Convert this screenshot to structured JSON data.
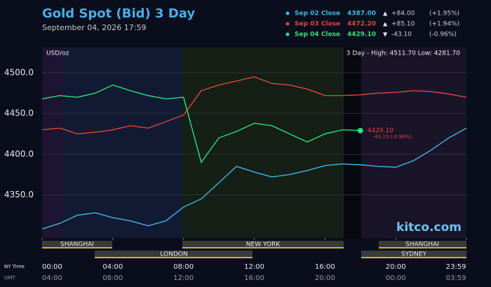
{
  "chart_data": {
    "type": "line",
    "title": "Gold Spot (Bid) 3 Day",
    "subtitle": "September 04, 2026 17:59",
    "unit_label": "USD/oz",
    "range_label": "3 Day - High: 4511.70  Low: 4281.70",
    "brand": "kitco.com",
    "x": [
      0,
      1,
      2,
      3,
      4,
      5,
      6,
      7,
      8,
      9,
      10,
      11,
      12,
      13,
      14,
      15,
      16,
      17,
      18,
      19,
      20,
      21,
      22,
      23,
      24
    ],
    "xlim": [
      0,
      24
    ],
    "xticks": [
      {
        "value": 0,
        "label": "00:00"
      },
      {
        "value": 4,
        "label": "04:00"
      },
      {
        "value": 8,
        "label": "08:00"
      },
      {
        "value": 12,
        "label": "12:00"
      },
      {
        "value": 16,
        "label": "16:00"
      },
      {
        "value": 20,
        "label": "20:00"
      },
      {
        "value": 23.98,
        "label": "23:59"
      }
    ],
    "x2ticks": [
      {
        "value": 0,
        "label": "04:00"
      },
      {
        "value": 4,
        "label": "08:00"
      },
      {
        "value": 8,
        "label": "12:00"
      },
      {
        "value": 12,
        "label": "16:00"
      },
      {
        "value": 16,
        "label": "20:00"
      },
      {
        "value": 20,
        "label": "00:00"
      },
      {
        "value": 23.98,
        "label": "03:59"
      }
    ],
    "xaxis_label": "NY Time",
    "x2axis_label": "GMT",
    "ylim": [
      4297,
      4531
    ],
    "yticks": [
      {
        "value": 4350,
        "label": "4350.0"
      },
      {
        "value": 4400,
        "label": "4400.0"
      },
      {
        "value": 4450,
        "label": "4450.0"
      },
      {
        "value": 4500,
        "label": "4500.0"
      }
    ],
    "grid": true,
    "series": [
      {
        "name": "Sep 02 Close",
        "close": "4387.00",
        "direction": "▲",
        "change": "+84.00",
        "pct": "(+1.95%)",
        "color": "#3fb6e0",
        "values": [
          4308,
          4315,
          4325,
          4328,
          4322,
          4318,
          4312,
          4318,
          4335,
          4345,
          4365,
          4385,
          4378,
          4372,
          4375,
          4380,
          4386,
          4388,
          4387,
          4385,
          4384,
          4392,
          4405,
          4420,
          4432
        ]
      },
      {
        "name": "Sep 03 Close",
        "close": "4472.20",
        "direction": "▲",
        "change": "+85.10",
        "pct": "(+1.94%)",
        "color": "#e0453c",
        "values": [
          4430,
          4432,
          4425,
          4427,
          4430,
          4435,
          4432,
          4440,
          4448,
          4478,
          4485,
          4490,
          4495,
          4487,
          4485,
          4480,
          4472,
          4472,
          4473,
          4475,
          4476,
          4478,
          4477,
          4474,
          4470
        ]
      },
      {
        "name": "Sep 04 Close",
        "close": "4429.10",
        "direction": "▼",
        "change": "-43.10",
        "pct": "(-0.96%)",
        "color": "#2ee07a",
        "values": [
          4468,
          4472,
          4470,
          4475,
          4485,
          4478,
          4472,
          4468,
          4470,
          4390,
          4420,
          4428,
          4438,
          4435,
          4425,
          4415,
          4425,
          4430,
          4429,
          null,
          null,
          null,
          null,
          null,
          null
        ]
      }
    ],
    "annotations": [
      "4429.10",
      "-43.10 (-0.96%)"
    ],
    "sessions_top": [
      "SHANGHAI",
      "NEW YORK",
      "SHANGHAI"
    ],
    "sessions_bottom": [
      "LONDON",
      "SYDNEY"
    ]
  }
}
